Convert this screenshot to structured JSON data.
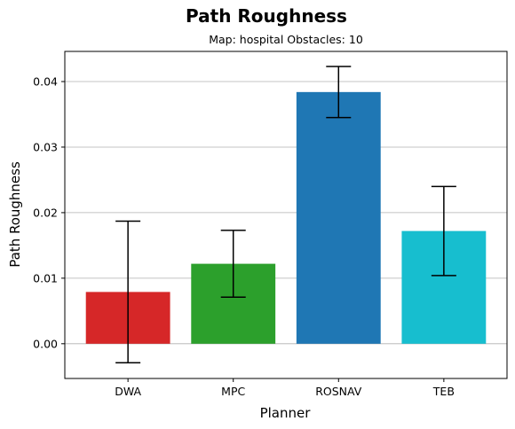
{
  "chart_data": {
    "type": "bar",
    "title": "Path Roughness",
    "subtitle": "Map: hospital Obstacles: 10",
    "xlabel": "Planner",
    "ylabel": "Path Roughness",
    "categories": [
      "DWA",
      "MPC",
      "ROSNAV",
      "TEB"
    ],
    "values": [
      0.0079,
      0.0122,
      0.0384,
      0.0172
    ],
    "error": [
      0.0108,
      0.0051,
      0.0039,
      0.0068
    ],
    "colors": [
      "#d62728",
      "#2ca02c",
      "#1f77b4",
      "#17becf"
    ],
    "ylim": [
      -0.0053,
      0.0446
    ],
    "yticks": [
      0.0,
      0.01,
      0.02,
      0.03,
      0.04
    ],
    "ytick_labels": [
      "0.00",
      "0.01",
      "0.02",
      "0.03",
      "0.04"
    ],
    "grid": "y"
  }
}
